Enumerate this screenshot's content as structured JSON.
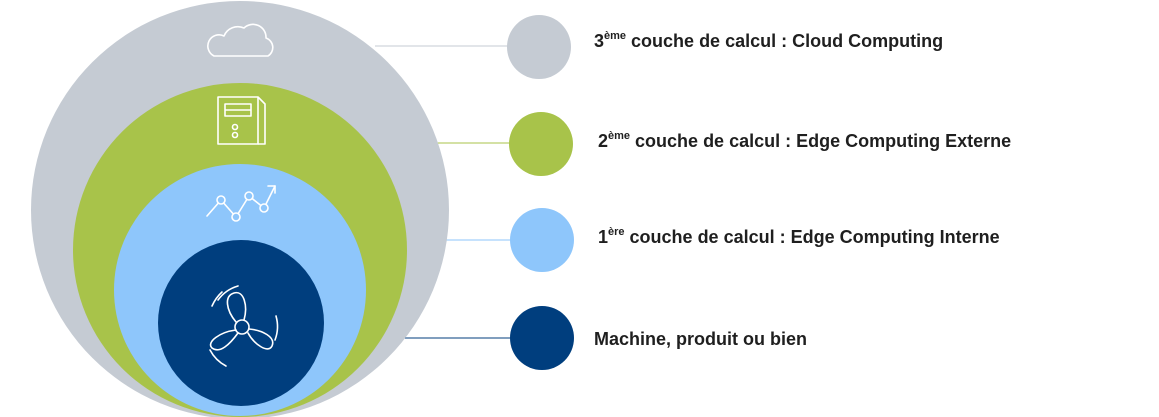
{
  "colors": {
    "cloud": "#c5cbd3",
    "edge_external": "#a8c34a",
    "edge_internal": "#8ec6fb",
    "machine": "#003e7e",
    "icon_stroke": "#ffffff",
    "connector_cloud": "#c5cbd3",
    "connector_edge_external": "#a8c34a",
    "connector_edge_internal": "#8ec6fb",
    "connector_machine": "#003e7e"
  },
  "layers": [
    {
      "key": "cloud",
      "icon": "cloud-icon",
      "label_number": "3",
      "label_sup": "ème",
      "label_text": " couche de calcul : Cloud Computing"
    },
    {
      "key": "edge_external",
      "icon": "server-icon",
      "label_number": "2",
      "label_sup": "ème",
      "label_text": " couche de calcul : Edge Computing Externe"
    },
    {
      "key": "edge_internal",
      "icon": "trend-chart-icon",
      "label_number": "1",
      "label_sup": "ère",
      "label_text": " couche de calcul : Edge Computing Interne"
    },
    {
      "key": "machine",
      "icon": "fan-icon",
      "label_number": "",
      "label_sup": "",
      "label_text": "Machine, produit ou bien"
    }
  ]
}
